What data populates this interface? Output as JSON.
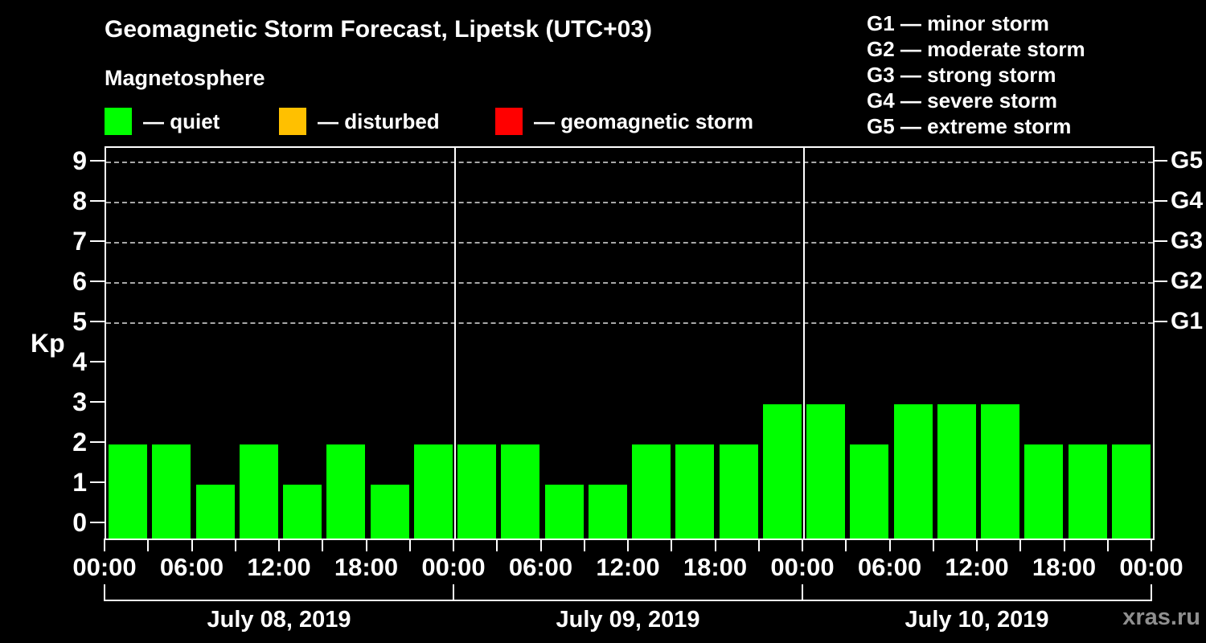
{
  "header": {
    "title": "Geomagnetic Storm Forecast, Lipetsk (UTC+03)",
    "subtitle": "Magnetosphere"
  },
  "legend": {
    "items": [
      {
        "name": "quiet",
        "label": "— quiet",
        "color": "#00ff00"
      },
      {
        "name": "disturbed",
        "label": "— disturbed",
        "color": "#ffc000"
      },
      {
        "name": "geomagnetic-storm",
        "label": "— geomagnetic storm",
        "color": "#ff0000"
      }
    ]
  },
  "storm_scale_legend": {
    "items": [
      "G1 — minor storm",
      "G2 — moderate storm",
      "G3 — strong storm",
      "G4 — severe storm",
      "G5 — extreme storm"
    ]
  },
  "watermark": "xras.ru",
  "chart_data": {
    "type": "bar",
    "title": "Geomagnetic Storm Forecast, Lipetsk (UTC+03)",
    "subtitle": "Magnetosphere",
    "ylabel": "Kp",
    "ylim": [
      0,
      9
    ],
    "grid": "dashed horizontal at Kp 5-9 only",
    "hours_per_bar": 3,
    "bar_color": "#00ff00",
    "bar_state": "quiet",
    "y_tick_labels": [
      "0",
      "1",
      "2",
      "3",
      "4",
      "5",
      "6",
      "7",
      "8",
      "9"
    ],
    "gridlines_kp": [
      5,
      6,
      7,
      8,
      9
    ],
    "right_axis_labels": [
      {
        "label": "G1",
        "kp": 5
      },
      {
        "label": "G2",
        "kp": 6
      },
      {
        "label": "G3",
        "kp": 7
      },
      {
        "label": "G4",
        "kp": 8
      },
      {
        "label": "G5",
        "kp": 9
      }
    ],
    "x_tick_labels": [
      "00:00",
      "06:00",
      "12:00",
      "18:00",
      "00:00",
      "06:00",
      "12:00",
      "18:00",
      "00:00",
      "06:00",
      "12:00",
      "18:00",
      "00:00"
    ],
    "days": [
      {
        "date": "July 08, 2019",
        "values": [
          2,
          2,
          1,
          2,
          1,
          2,
          1,
          2
        ]
      },
      {
        "date": "July 09, 2019",
        "values": [
          2,
          2,
          1,
          1,
          2,
          2,
          2,
          3
        ]
      },
      {
        "date": "July 10, 2019",
        "values": [
          3,
          2,
          3,
          3,
          3,
          2,
          2,
          2
        ]
      }
    ]
  }
}
